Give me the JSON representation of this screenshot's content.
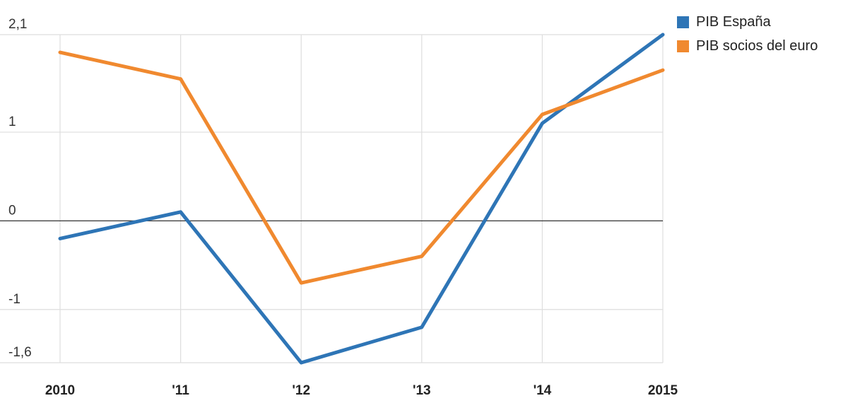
{
  "chart_data": {
    "type": "line",
    "title": "",
    "xlabel": "",
    "ylabel": "",
    "categories": [
      "2010",
      "'11",
      "'12",
      "'13",
      "'14",
      "2015"
    ],
    "ylim": [
      -1.6,
      2.1
    ],
    "yticks": [
      2.1,
      1,
      0,
      -1,
      -1.6
    ],
    "ytick_labels": [
      "2,1",
      "1",
      "0",
      "-1",
      "-1,6"
    ],
    "grid": true,
    "zero_line": true,
    "legend_position": "top-right",
    "series": [
      {
        "name": "PIB España",
        "color": "#2e75b6",
        "values": [
          -0.2,
          0.1,
          -1.6,
          -1.2,
          1.1,
          2.1
        ]
      },
      {
        "name": "PIB socios del euro",
        "color": "#f0892f",
        "values": [
          1.9,
          1.6,
          -0.7,
          -0.4,
          1.2,
          1.7
        ]
      }
    ]
  }
}
